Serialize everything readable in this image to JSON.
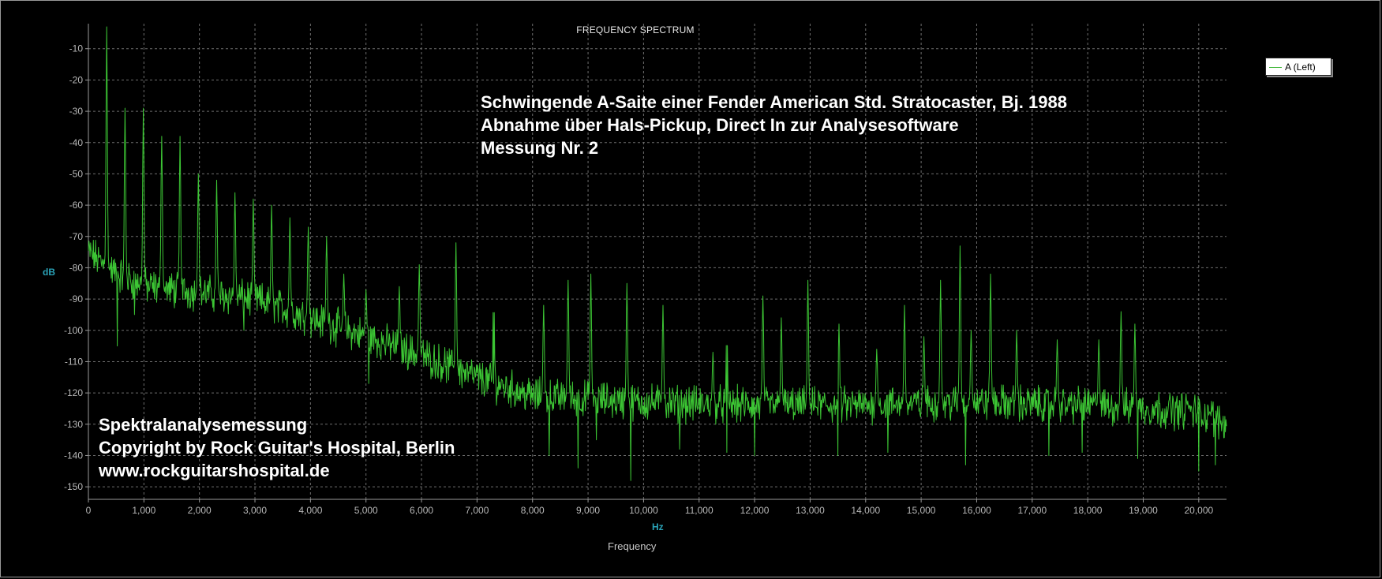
{
  "colors": {
    "background": "#000000",
    "series": "#41d638",
    "grid": "#6e6e6e",
    "axis_unit": "#2aa3b8"
  },
  "title": "FREQUENCY SPECTRUM",
  "legend": {
    "label": "A (Left)"
  },
  "annotations": {
    "top": [
      "Schwingende A-Saite einer Fender American Std. Stratocaster, Bj. 1988",
      "Abnahme über Hals-Pickup, Direct In zur Analysesoftware",
      "Messung Nr. 2"
    ],
    "bottom": [
      "Spektralanalysemessung",
      "Copyright by Rock Guitar's Hospital, Berlin",
      "www.rockguitarshospital.de"
    ]
  },
  "chart_data": {
    "type": "line",
    "title": "FREQUENCY SPECTRUM",
    "xlabel": "Frequency",
    "x_unit": "Hz",
    "ylabel": "dB",
    "xlim": [
      0,
      20500
    ],
    "ylim": [
      -154,
      -2
    ],
    "x_ticks": [
      0,
      1000,
      2000,
      3000,
      4000,
      5000,
      6000,
      7000,
      8000,
      9000,
      10000,
      11000,
      12000,
      13000,
      14000,
      15000,
      16000,
      17000,
      18000,
      19000,
      20000
    ],
    "x_tick_labels": [
      "0",
      "1,000",
      "2,000",
      "3,000",
      "4,000",
      "5,000",
      "6,000",
      "7,000",
      "8,000",
      "9,000",
      "10,000",
      "11,000",
      "12,000",
      "13,000",
      "14,000",
      "15,000",
      "16,000",
      "17,000",
      "18,000",
      "19,000",
      "20,000"
    ],
    "y_ticks": [
      -10,
      -20,
      -30,
      -40,
      -50,
      -60,
      -70,
      -80,
      -90,
      -100,
      -110,
      -120,
      -130,
      -140,
      -150
    ],
    "y_tick_labels": [
      "-10",
      "-20",
      "-30",
      "-40",
      "-50",
      "-60",
      "-70",
      "-80",
      "-90",
      "-100",
      "-110",
      "-120",
      "-130",
      "-140",
      "-150"
    ],
    "grid": true,
    "legend_position": "top-right",
    "series": [
      {
        "name": "A (Left)",
        "baseline": [
          [
            0,
            -75
          ],
          [
            500,
            -82
          ],
          [
            1000,
            -86
          ],
          [
            2000,
            -88
          ],
          [
            3000,
            -90
          ],
          [
            4000,
            -96
          ],
          [
            5000,
            -102
          ],
          [
            6000,
            -108
          ],
          [
            7000,
            -115
          ],
          [
            8000,
            -121
          ],
          [
            10000,
            -123
          ],
          [
            12000,
            -124
          ],
          [
            14000,
            -124
          ],
          [
            16000,
            -123
          ],
          [
            18000,
            -124
          ],
          [
            20000,
            -126
          ],
          [
            20500,
            -130
          ]
        ],
        "peaks": [
          [
            330,
            -3
          ],
          [
            660,
            -29
          ],
          [
            990,
            -29
          ],
          [
            1320,
            -38
          ],
          [
            1650,
            -38
          ],
          [
            1980,
            -50
          ],
          [
            2310,
            -52
          ],
          [
            2640,
            -56
          ],
          [
            2970,
            -58
          ],
          [
            3300,
            -60
          ],
          [
            3630,
            -64
          ],
          [
            3960,
            -67
          ],
          [
            4290,
            -70
          ],
          [
            4600,
            -82
          ],
          [
            5000,
            -87
          ],
          [
            5600,
            -86
          ],
          [
            5960,
            -79
          ],
          [
            6620,
            -72
          ],
          [
            7300,
            -85
          ],
          [
            8200,
            -92
          ],
          [
            8640,
            -84
          ],
          [
            9050,
            -82
          ],
          [
            9700,
            -85
          ],
          [
            10350,
            -92
          ],
          [
            11250,
            -107
          ],
          [
            11500,
            -97
          ],
          [
            12150,
            -89
          ],
          [
            12480,
            -96
          ],
          [
            12960,
            -84
          ],
          [
            13520,
            -98
          ],
          [
            14200,
            -106
          ],
          [
            14700,
            -92
          ],
          [
            15050,
            -102
          ],
          [
            15350,
            -84
          ],
          [
            15700,
            -73
          ],
          [
            15900,
            -100
          ],
          [
            16250,
            -82
          ],
          [
            16720,
            -100
          ],
          [
            17450,
            -103
          ],
          [
            18200,
            -103
          ],
          [
            18600,
            -94
          ],
          [
            18850,
            -98
          ],
          [
            19800,
            -123
          ],
          [
            20200,
            -126
          ]
        ],
        "dips": [
          [
            520,
            -105
          ],
          [
            830,
            -95
          ],
          [
            2800,
            -100
          ],
          [
            5050,
            -117
          ],
          [
            7300,
            -117
          ],
          [
            8300,
            -140
          ],
          [
            8820,
            -144
          ],
          [
            9150,
            -135
          ],
          [
            9770,
            -148
          ],
          [
            10650,
            -138
          ],
          [
            11500,
            -139
          ],
          [
            12000,
            -140
          ],
          [
            13500,
            -140
          ],
          [
            14400,
            -139
          ],
          [
            15800,
            -143
          ],
          [
            17300,
            -140
          ],
          [
            17900,
            -139
          ],
          [
            18900,
            -141
          ],
          [
            20000,
            -145
          ],
          [
            20300,
            -143
          ]
        ]
      }
    ]
  }
}
